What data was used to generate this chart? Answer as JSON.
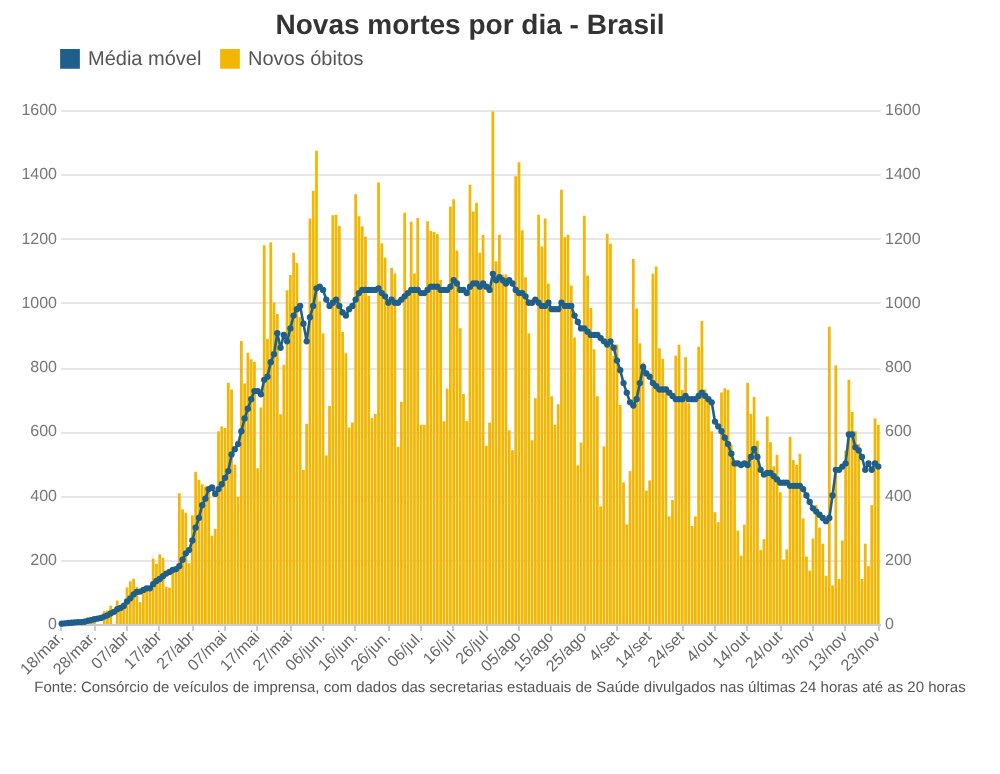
{
  "chart_data": {
    "type": "bar",
    "title": "Novas mortes por dia - Brasil",
    "annotations": [
      "Fonte: Consórcio de veículos de imprensa, com dados das secretarias estaduais de Saúde divulgados nas últimas 24 horas até as 20 horas"
    ],
    "categories": [
      "18/mar.",
      null,
      null,
      null,
      null,
      null,
      null,
      null,
      null,
      null,
      "28/mar.",
      null,
      null,
      null,
      null,
      null,
      null,
      null,
      null,
      null,
      "07/abr",
      null,
      null,
      null,
      null,
      null,
      null,
      null,
      null,
      null,
      "17/abr",
      null,
      null,
      null,
      null,
      null,
      null,
      null,
      null,
      null,
      "27/abr",
      null,
      null,
      null,
      null,
      null,
      null,
      null,
      null,
      null,
      "07/mai",
      null,
      null,
      null,
      null,
      null,
      null,
      null,
      null,
      null,
      "17/mai",
      null,
      null,
      null,
      null,
      null,
      null,
      null,
      null,
      null,
      "27/mai",
      null,
      null,
      null,
      null,
      null,
      null,
      null,
      null,
      null,
      "06/jun.",
      null,
      null,
      null,
      null,
      null,
      null,
      null,
      null,
      null,
      "16/jun.",
      null,
      null,
      null,
      null,
      null,
      null,
      null,
      null,
      null,
      "26/jun.",
      null,
      null,
      null,
      null,
      null,
      null,
      null,
      null,
      null,
      "06/jul.",
      null,
      null,
      null,
      null,
      null,
      null,
      null,
      null,
      null,
      "16/jul",
      null,
      null,
      null,
      null,
      null,
      null,
      null,
      null,
      null,
      "26/jul",
      null,
      null,
      null,
      null,
      null,
      null,
      null,
      null,
      null,
      "05/ago",
      null,
      null,
      null,
      null,
      null,
      null,
      null,
      null,
      null,
      "15/ago",
      null,
      null,
      null,
      null,
      null,
      null,
      null,
      null,
      null,
      "25/ago",
      null,
      null,
      null,
      null,
      null,
      null,
      null,
      null,
      null,
      "4/set",
      null,
      null,
      null,
      null,
      null,
      null,
      null,
      null,
      null,
      "14/set",
      null,
      null,
      null,
      null,
      null,
      null,
      null,
      null,
      null,
      "24/set",
      null,
      null,
      null,
      null,
      null,
      null,
      null,
      null,
      null,
      "4/out",
      null,
      null,
      null,
      null,
      null,
      null,
      null,
      null,
      null,
      "14/out",
      null,
      null,
      null,
      null,
      null,
      null,
      null,
      null,
      null,
      "24/out",
      null,
      null,
      null,
      null,
      null,
      null,
      null,
      null,
      null,
      "3/nov",
      null,
      null,
      null,
      null,
      null,
      null,
      null,
      null,
      null,
      "13/nov",
      null,
      null,
      null,
      null,
      null,
      null,
      null,
      null,
      null,
      "23/nov"
    ],
    "series": [
      {
        "name": "Média móvel",
        "type": "line",
        "color": "#1f5f8b",
        "values": [
          1,
          2,
          3,
          4,
          5,
          6,
          6,
          7,
          10,
          12,
          15,
          17,
          19,
          23,
          27,
          33,
          38,
          46,
          50,
          56,
          70,
          80,
          92,
          100,
          101,
          106,
          111,
          111,
          124,
          134,
          140,
          149,
          157,
          162,
          168,
          171,
          180,
          200,
          220,
          230,
          260,
          300,
          330,
          370,
          390,
          420,
          425,
          405,
          420,
          435,
          455,
          476,
          528,
          544,
          560,
          600,
          640,
          670,
          700,
          725,
          725,
          715,
          760,
          770,
          815,
          840,
          905,
          860,
          900,
          880,
          920,
          960,
          980,
          990,
          935,
          880,
          955,
          990,
          1045,
          1050,
          1040,
          1010,
          990,
          1000,
          1010,
          990,
          970,
          960,
          980,
          990,
          1010,
          1030,
          1040,
          1040,
          1040,
          1040,
          1040,
          1045,
          1030,
          1020,
          1000,
          1010,
          1000,
          1000,
          1010,
          1020,
          1030,
          1040,
          1040,
          1040,
          1030,
          1030,
          1040,
          1050,
          1050,
          1050,
          1040,
          1040,
          1040,
          1050,
          1070,
          1060,
          1040,
          1040,
          1030,
          1050,
          1060,
          1060,
          1050,
          1060,
          1050,
          1040,
          1090,
          1070,
          1080,
          1070,
          1060,
          1070,
          1060,
          1040,
          1030,
          1030,
          1020,
          1000,
          1000,
          1010,
          1000,
          990,
          990,
          1000,
          980,
          980,
          980,
          1000,
          990,
          990,
          990,
          960,
          940,
          920,
          920,
          910,
          900,
          900,
          900,
          890,
          880,
          870,
          880,
          860,
          820,
          790,
          750,
          720,
          690,
          680,
          700,
          750,
          800,
          780,
          770,
          750,
          740,
          730,
          730,
          730,
          720,
          710,
          700,
          700,
          700,
          710,
          700,
          700,
          700,
          710,
          720,
          710,
          700,
          690,
          630,
          615,
          600,
          580,
          560,
          530,
          500,
          500,
          495,
          500,
          495,
          520,
          545,
          520,
          480,
          465,
          470,
          470,
          460,
          450,
          440,
          440,
          440,
          430,
          430,
          430,
          430,
          420,
          400,
          380,
          360,
          350,
          340,
          330,
          320,
          330,
          400,
          480,
          480,
          490,
          500,
          590,
          590,
          550,
          540,
          520,
          480,
          500,
          480,
          500,
          490
        ]
      },
      {
        "name": "Novos óbitos",
        "color": "#f2b705",
        "values": [
          1,
          3,
          4,
          7,
          7,
          7,
          null,
          null,
          21,
          17,
          22,
          null,
          null,
          40,
          42,
          57,
          null,
          73,
          54,
          67,
          114,
          133,
          141,
          115,
          68,
          99,
          105,
          114,
          204,
          188,
          217,
          206,
          115,
          113,
          166,
          165,
          407,
          357,
          346,
          189,
          338,
          474,
          449,
          435,
          428,
          421,
          275,
          296,
          600,
          615,
          610,
          751,
          730,
          496,
          396,
          881,
          749,
          844,
          824,
          816,
          485,
          674,
          1179,
          888,
          1188,
          1001,
          965,
          653,
          807,
          1039,
          1086,
          1156,
          1124,
          956,
          480,
          623,
          1262,
          1349,
          1473,
          1005,
          904,
          525,
          679,
          1272,
          1274,
          1239,
          909,
          843,
          612,
          627,
          1338,
          1269,
          1238,
          1206,
          1022,
          641,
          654,
          1374,
          1185,
          1141,
          990,
          1109,
          1091,
          552,
          692,
          1280,
          1038,
          1252,
          1091,
          1264,
          620,
          620,
          1254,
          1223,
          1220,
          1214,
          1071,
          631,
          733,
          1300,
          1322,
          1163,
          921,
          716,
          632,
          1367,
          1284,
          1311,
          1156,
          1211,
          555,
          627,
          1595,
          1129,
          1212,
          1088,
          1088,
          603,
          541,
          1394,
          1437,
          1226,
          1079,
          905,
          572,
          703,
          1274,
          1175,
          1262,
          1060,
          709,
          620,
          684,
          1352,
          1204,
          1212,
          1054,
          892,
          494,
          565,
          1271,
          1085,
          984,
          855,
          709,
          366,
          553,
          1215,
          1184,
          834,
          870,
          682,
          441,
          310,
          476,
          1136,
          982,
          874,
          814,
          415,
          447,
          1090,
          1113,
          858,
          826,
          739,
          335,
          386,
          836,
          869,
          729,
          831,
          687,
          305,
          335,
          863,
          943,
          730,
          697,
          600,
          348,
          317,
          721,
          734,
          729,
          559,
          506,
          291,
          213,
          309,
          751,
          654,
          707,
          571,
          230,
          264,
          646,
          566,
          491,
          527,
          410,
          201,
          232,
          583,
          510,
          495,
          530,
          329,
          210,
          166,
          266,
          370,
          300,
          250,
          150,
          925,
          120,
          805,
          140,
          260,
          540,
          760,
          660,
          600,
          560,
          140,
          250,
          180,
          370,
          640,
          620
        ]
      }
    ],
    "ylim": [
      0,
      1600
    ],
    "yticks": [
      0,
      200,
      400,
      600,
      800,
      1000,
      1200,
      1400,
      1600
    ],
    "y2lim": [
      0,
      1600
    ],
    "y2ticks": [
      0,
      200,
      400,
      600,
      800,
      1000,
      1200,
      1400,
      1600
    ],
    "grid": "y",
    "legend": "top",
    "marker": "circle",
    "line_style": "solid"
  }
}
